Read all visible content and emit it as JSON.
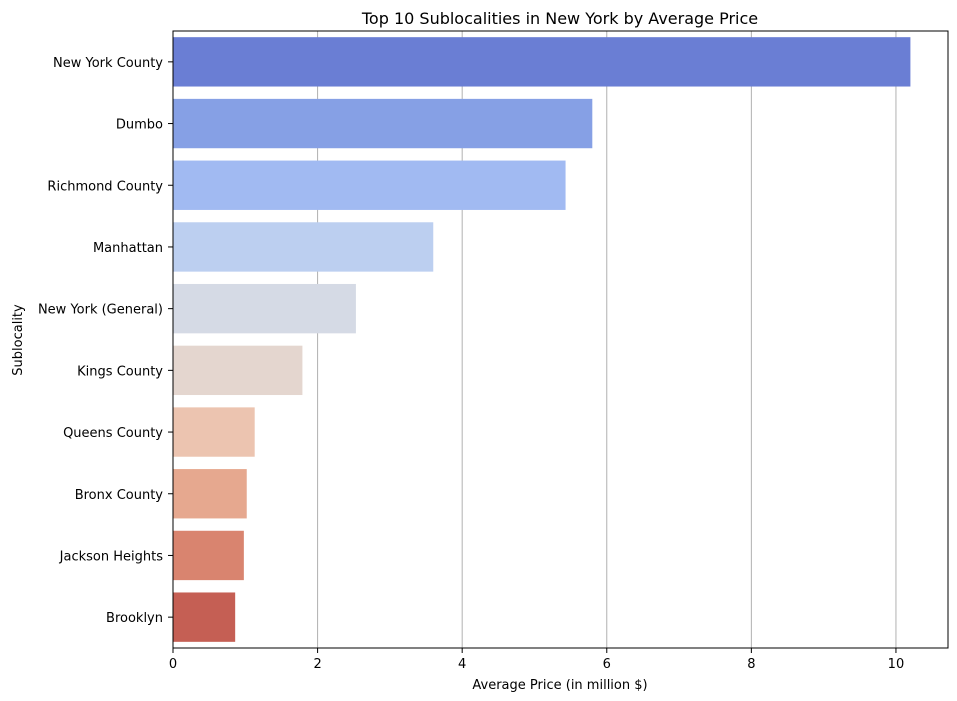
{
  "chart_data": {
    "type": "bar",
    "orientation": "horizontal",
    "title": "Top 10 Sublocalities in New York by Average Price",
    "xlabel": "Average Price (in million $)",
    "ylabel": "Sublocality",
    "categories": [
      "New York County",
      "Dumbo",
      "Richmond County",
      "Manhattan",
      "New York (General)",
      "Kings County",
      "Queens County",
      "Bronx County",
      "Jackson Heights",
      "Brooklyn"
    ],
    "values": [
      10.2,
      5.8,
      5.43,
      3.6,
      2.53,
      1.79,
      1.13,
      1.02,
      0.98,
      0.86
    ],
    "colors": [
      "#6a7ed4",
      "#86a0e5",
      "#a1baf2",
      "#bccff0",
      "#d5dae5",
      "#e4d6cf",
      "#ecc4b0",
      "#e6a88f",
      "#d9846f",
      "#c55f54"
    ],
    "xlim": [
      0,
      10.72
    ],
    "xticks": [
      0,
      2,
      4,
      6,
      8,
      10
    ],
    "xtick_labels": [
      "0",
      "2",
      "4",
      "6",
      "8",
      "10"
    ],
    "grid": "x-axis vertical lines",
    "legend": "none"
  }
}
